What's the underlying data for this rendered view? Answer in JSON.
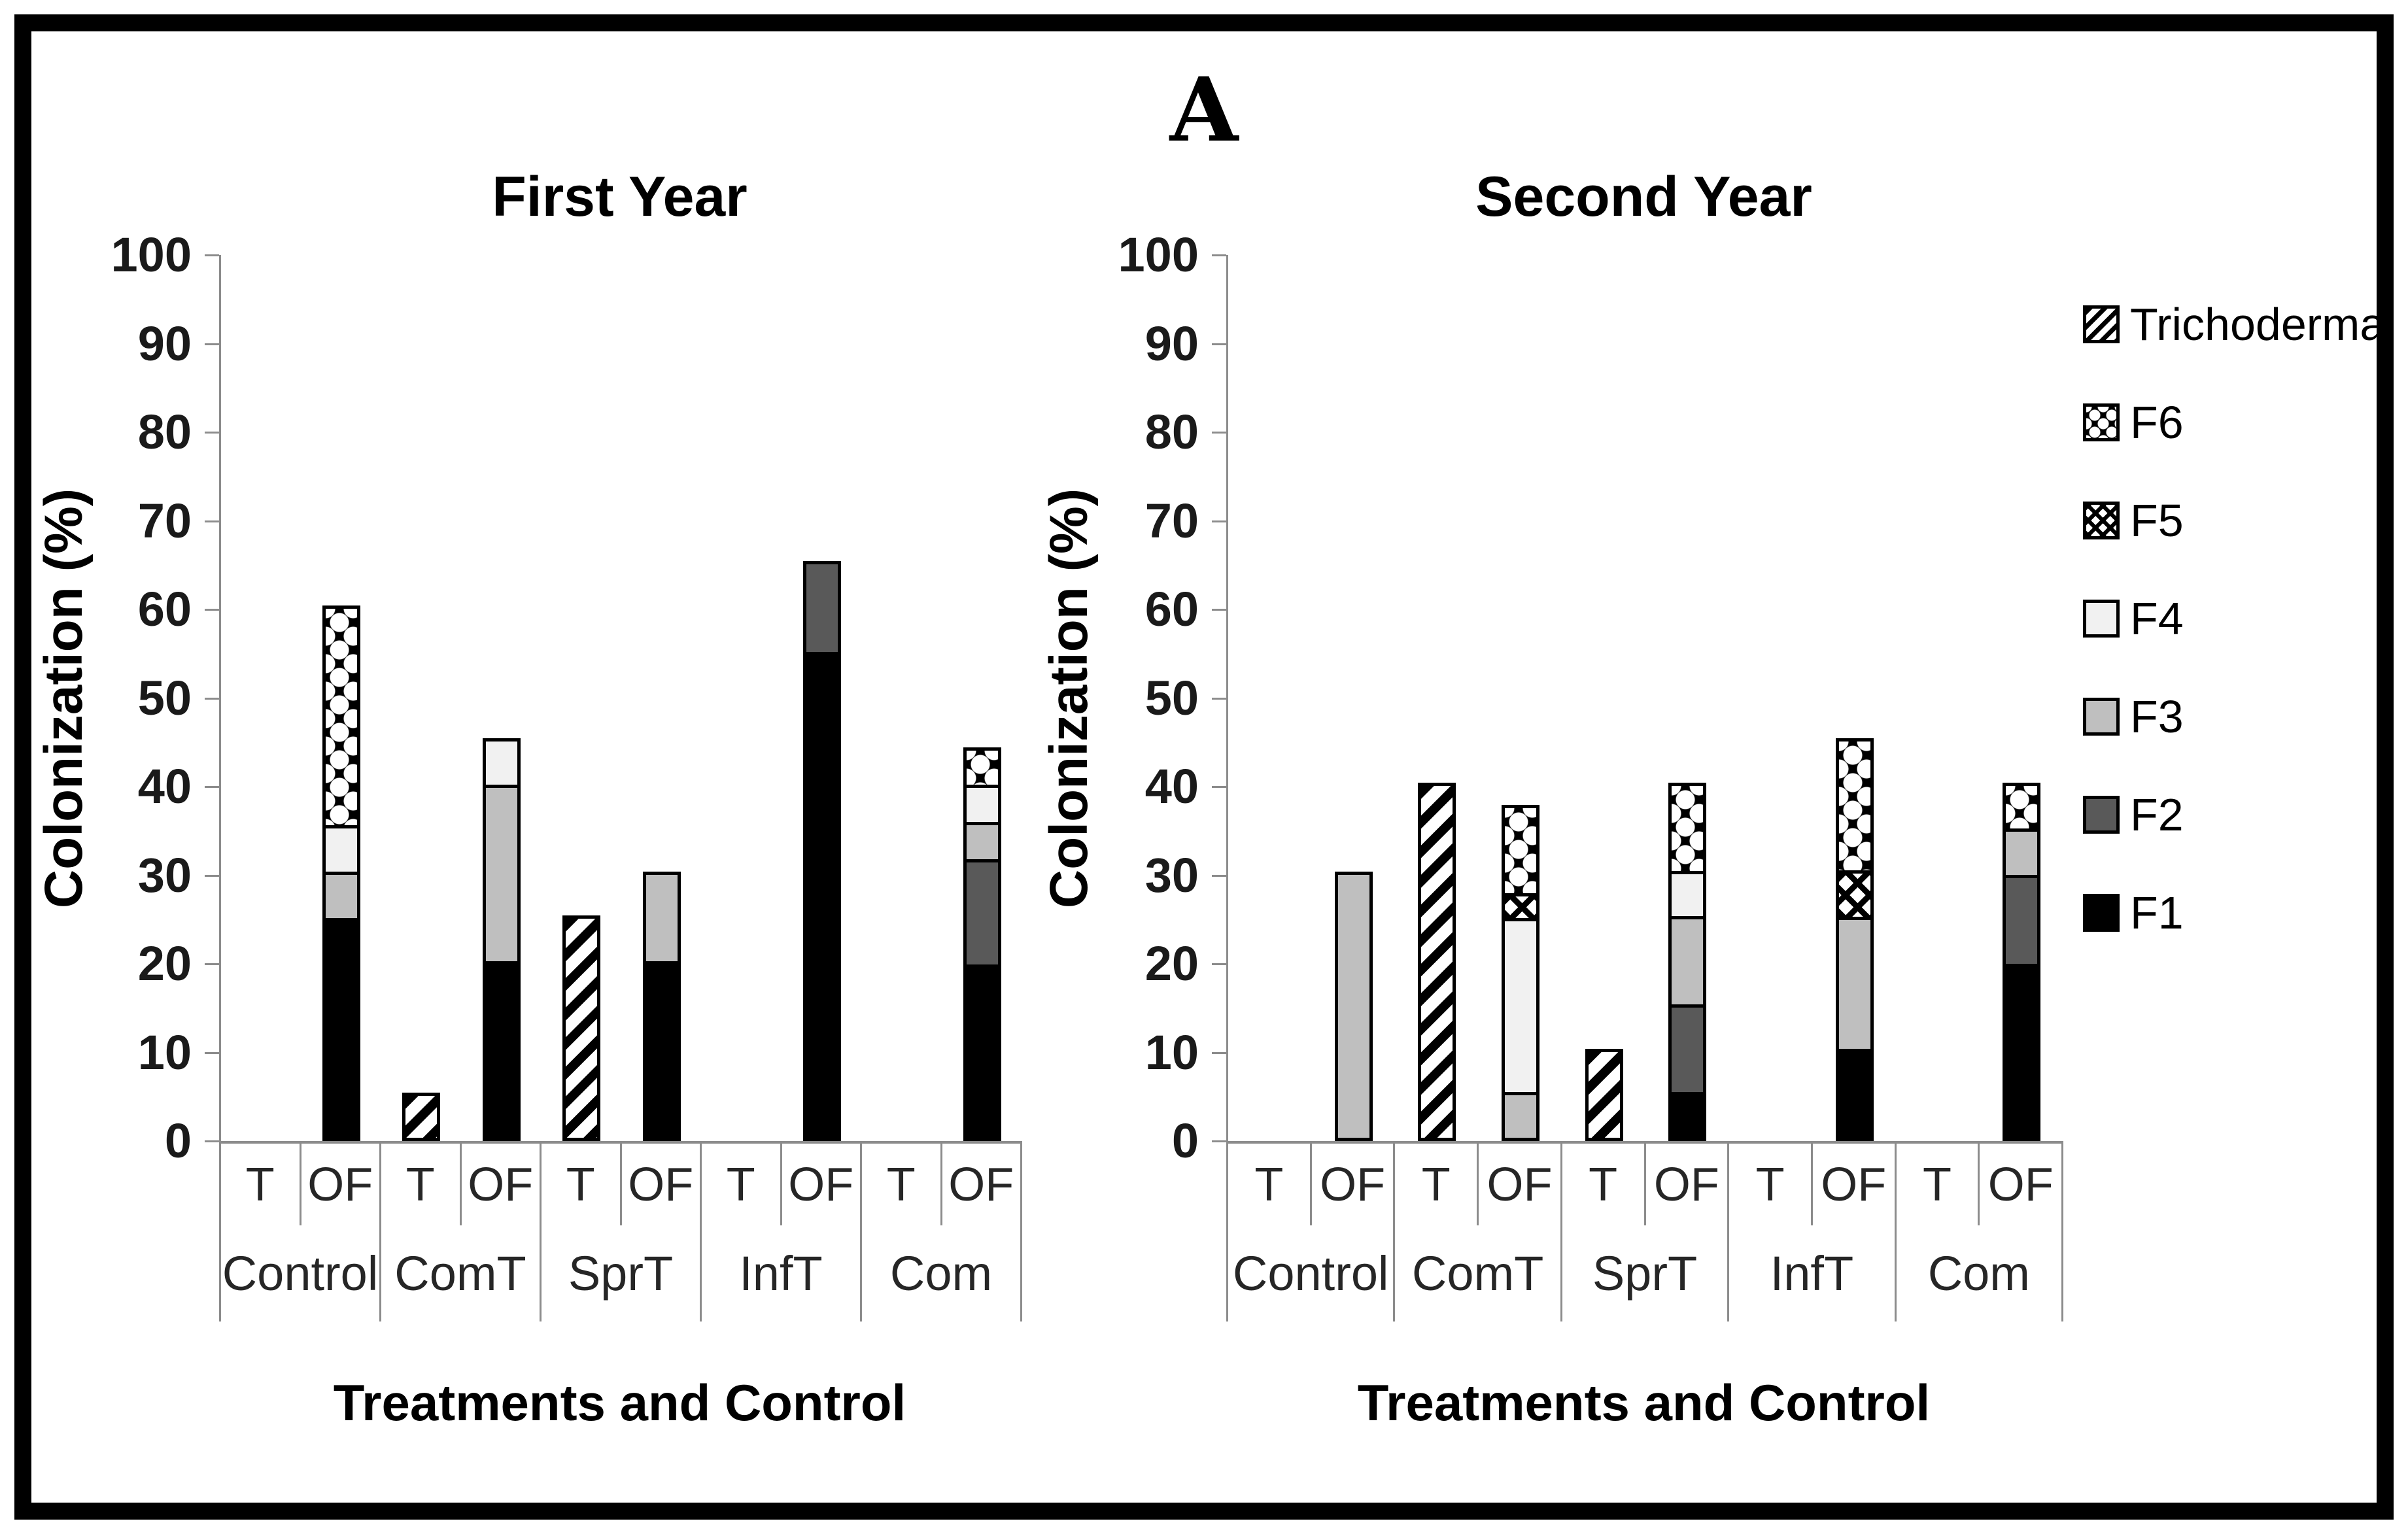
{
  "figure": {
    "label": "A"
  },
  "colors": {
    "f1": "#000000",
    "f2": "#595959",
    "f3": "#bfbfbf",
    "f4": "#f1f1f1",
    "pattern_ink": "#000000",
    "axis_line": "#8c8c8c",
    "text": "#1a1a1a",
    "background": "#ffffff",
    "frame": "#000000"
  },
  "legend": {
    "position": "right",
    "entries": [
      {
        "label": "Trichoderma",
        "series_key": "Trichoderma",
        "swatch": "diagonal-hatch"
      },
      {
        "label": "F6",
        "series_key": "F6",
        "swatch": "blob-pattern"
      },
      {
        "label": "F5",
        "series_key": "F5",
        "swatch": "crosshatch"
      },
      {
        "label": "F4",
        "series_key": "F4",
        "swatch": "solid-very-light-gray"
      },
      {
        "label": "F3",
        "series_key": "F3",
        "swatch": "solid-light-gray"
      },
      {
        "label": "F2",
        "series_key": "F2",
        "swatch": "solid-dark-gray"
      },
      {
        "label": "F1",
        "series_key": "F1",
        "swatch": "solid-black"
      }
    ]
  },
  "chart_data": [
    {
      "type": "bar",
      "stacked": true,
      "title": "First Year",
      "xlabel": "Treatments and Control",
      "ylabel": "Colonization (%)",
      "ylim": [
        0,
        100
      ],
      "yticks": [
        0,
        10,
        20,
        30,
        40,
        50,
        60,
        70,
        80,
        90,
        100
      ],
      "grid": false,
      "groups": [
        "Control",
        "ComT",
        "SprT",
        "InfT",
        "Com"
      ],
      "bar_labels": [
        "T",
        "OF"
      ],
      "categories": [
        "Control T",
        "Control OF",
        "ComT T",
        "ComT OF",
        "SprT T",
        "SprT OF",
        "InfT T",
        "InfT OF",
        "Com T",
        "Com OF"
      ],
      "stack_order": [
        "F1",
        "F2",
        "F3",
        "F4",
        "F5",
        "F6",
        "Trichoderma"
      ],
      "series": [
        {
          "name": "F1",
          "values": [
            0,
            25,
            0,
            20,
            0,
            20,
            0,
            55,
            0,
            20
          ]
        },
        {
          "name": "F2",
          "values": [
            0,
            0,
            0,
            0,
            0,
            0,
            0,
            10,
            0,
            12
          ]
        },
        {
          "name": "F3",
          "values": [
            0,
            5,
            0,
            20,
            0,
            10,
            0,
            0,
            0,
            4
          ]
        },
        {
          "name": "F4",
          "values": [
            0,
            5,
            0,
            5,
            0,
            0,
            0,
            0,
            0,
            4
          ]
        },
        {
          "name": "F5",
          "values": [
            0,
            0,
            0,
            0,
            0,
            0,
            0,
            0,
            0,
            0
          ]
        },
        {
          "name": "F6",
          "values": [
            0,
            25,
            0,
            0,
            0,
            0,
            0,
            0,
            0,
            4
          ]
        },
        {
          "name": "Trichoderma",
          "values": [
            0,
            0,
            5,
            0,
            25,
            0,
            0,
            0,
            0,
            0
          ]
        }
      ],
      "bar_totals": [
        0,
        60,
        5,
        45,
        25,
        30,
        0,
        65,
        0,
        44
      ]
    },
    {
      "type": "bar",
      "stacked": true,
      "title": "Second Year",
      "xlabel": "Treatments and Control",
      "ylabel": "Colonization (%)",
      "ylim": [
        0,
        100
      ],
      "yticks": [
        0,
        10,
        20,
        30,
        40,
        50,
        60,
        70,
        80,
        90,
        100
      ],
      "grid": false,
      "groups": [
        "Control",
        "ComT",
        "SprT",
        "InfT",
        "Com"
      ],
      "bar_labels": [
        "T",
        "OF"
      ],
      "categories": [
        "Control T",
        "Control OF",
        "ComT T",
        "ComT OF",
        "SprT T",
        "SprT OF",
        "InfT T",
        "InfT OF",
        "Com T",
        "Com OF"
      ],
      "stack_order": [
        "F1",
        "F2",
        "F3",
        "F4",
        "F5",
        "F6",
        "Trichoderma"
      ],
      "series": [
        {
          "name": "F1",
          "values": [
            0,
            0,
            0,
            0,
            0,
            5,
            0,
            10,
            0,
            20
          ]
        },
        {
          "name": "F2",
          "values": [
            0,
            0,
            0,
            0,
            0,
            10,
            0,
            0,
            0,
            10
          ]
        },
        {
          "name": "F3",
          "values": [
            0,
            30,
            0,
            5,
            0,
            10,
            0,
            15,
            0,
            5
          ]
        },
        {
          "name": "F4",
          "values": [
            0,
            0,
            0,
            20,
            0,
            5,
            0,
            0,
            0,
            0
          ]
        },
        {
          "name": "F5",
          "values": [
            0,
            0,
            0,
            2.5,
            0,
            0,
            0,
            5,
            0,
            0
          ]
        },
        {
          "name": "F6",
          "values": [
            0,
            0,
            0,
            10,
            0,
            10,
            0,
            15,
            0,
            5
          ]
        },
        {
          "name": "Trichoderma",
          "values": [
            0,
            0,
            40,
            0,
            10,
            0,
            0,
            0,
            0,
            0
          ]
        }
      ],
      "bar_totals": [
        0,
        30,
        40,
        37.5,
        10,
        40,
        0,
        45,
        0,
        40
      ]
    }
  ]
}
